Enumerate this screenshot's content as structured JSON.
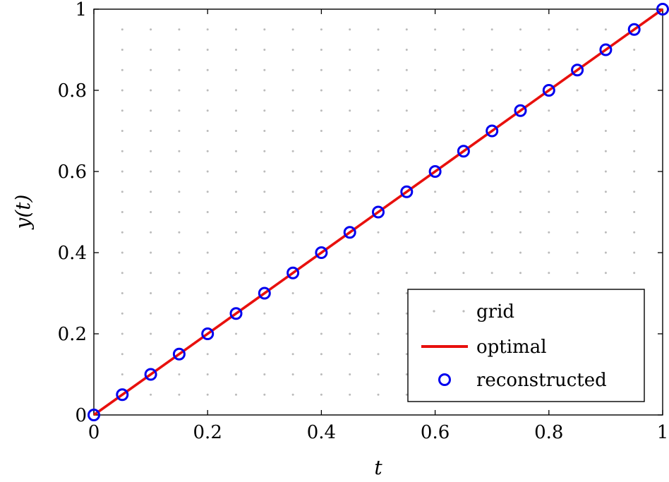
{
  "chart_data": {
    "type": "line",
    "xlabel": "t",
    "ylabel": "y(t)",
    "xlim": [
      0,
      1
    ],
    "ylim": [
      0,
      1
    ],
    "x_ticks": [
      "0",
      "0.2",
      "0.4",
      "0.6",
      "0.8",
      "1"
    ],
    "y_ticks": [
      "0",
      "0.2",
      "0.4",
      "0.6",
      "0.8",
      "1"
    ],
    "grid": "dotted",
    "grid_x": [
      0,
      0.05,
      0.1,
      0.15,
      0.2,
      0.25,
      0.3,
      0.35,
      0.4,
      0.45,
      0.5,
      0.55,
      0.6,
      0.65,
      0.7,
      0.75,
      0.8,
      0.85,
      0.9,
      0.95,
      1
    ],
    "grid_y": [
      0,
      0.05,
      0.1,
      0.15,
      0.2,
      0.25,
      0.3,
      0.35,
      0.4,
      0.45,
      0.5,
      0.55,
      0.6,
      0.65,
      0.7,
      0.75,
      0.8,
      0.85,
      0.9,
      0.95,
      1
    ],
    "legend_position": "bottom-right",
    "series": [
      {
        "name": "optimal",
        "style": "line",
        "color": "#e8100d",
        "x": [
          0,
          1
        ],
        "y": [
          0,
          1
        ]
      },
      {
        "name": "reconstructed",
        "style": "markers",
        "color": "#0000ee",
        "x": [
          0,
          0.05,
          0.1,
          0.15,
          0.2,
          0.25,
          0.3,
          0.35,
          0.4,
          0.45,
          0.5,
          0.55,
          0.6,
          0.65,
          0.7,
          0.75,
          0.8,
          0.85,
          0.9,
          0.95,
          1
        ],
        "y": [
          0,
          0.05,
          0.1,
          0.15,
          0.2,
          0.25,
          0.3,
          0.35,
          0.4,
          0.45,
          0.5,
          0.55,
          0.6,
          0.65,
          0.7,
          0.75,
          0.8,
          0.85,
          0.9,
          0.95,
          1
        ]
      }
    ],
    "legend": [
      {
        "label": "grid",
        "marker": "grid-dot",
        "color": "#bbbbbb"
      },
      {
        "label": "optimal",
        "marker": "line",
        "color": "#e8100d"
      },
      {
        "label": "reconstructed",
        "marker": "circle",
        "color": "#0000ee"
      }
    ]
  }
}
